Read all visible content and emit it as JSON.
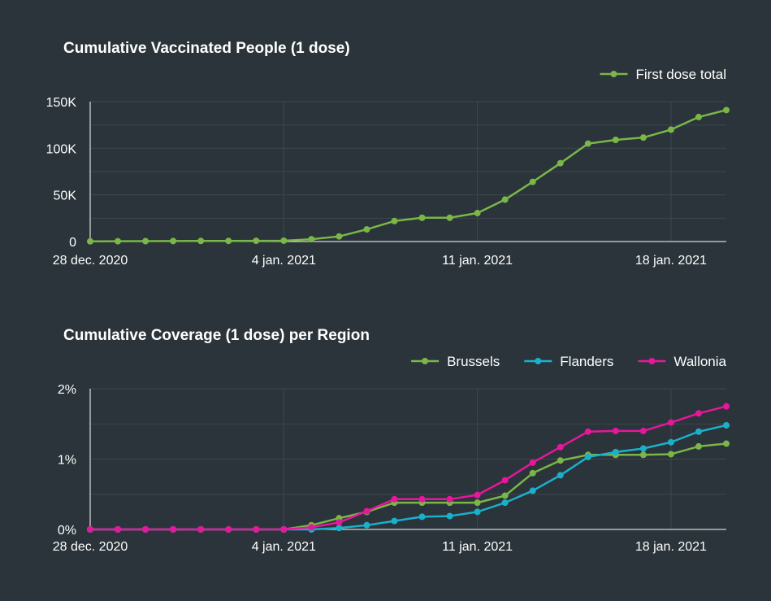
{
  "colors": {
    "background": "#2a343a",
    "first_dose": "#7ab648",
    "brussels": "#7ab648",
    "flanders": "#1ab0cc",
    "wallonia": "#e6179a",
    "grid": "#3d474d"
  },
  "chart_data": [
    {
      "type": "line",
      "title": "Cumulative Vaccinated People (1 dose)",
      "xlabel": "",
      "ylabel": "",
      "x": [
        "2020-12-28",
        "2020-12-29",
        "2020-12-30",
        "2020-12-31",
        "2021-01-01",
        "2021-01-02",
        "2021-01-03",
        "2021-01-04",
        "2021-01-05",
        "2021-01-06",
        "2021-01-07",
        "2021-01-08",
        "2021-01-09",
        "2021-01-10",
        "2021-01-11",
        "2021-01-12",
        "2021-01-13",
        "2021-01-14",
        "2021-01-15",
        "2021-01-16",
        "2021-01-17",
        "2021-01-18",
        "2021-01-19",
        "2021-01-20"
      ],
      "x_tick_labels": [
        "28 dec. 2020",
        "4 jan. 2021",
        "11 jan. 2021",
        "18 jan. 2021"
      ],
      "x_tick_index": [
        0,
        7,
        14,
        21
      ],
      "y_tick_labels": [
        "0",
        "50K",
        "100K",
        "150K"
      ],
      "y_tick_values": [
        0,
        50000,
        100000,
        150000
      ],
      "ylim": [
        0,
        150000
      ],
      "grid": true,
      "legend_position": "top-right",
      "series": [
        {
          "name": "First dose total",
          "color": "#7ab648",
          "values": [
            200,
            300,
            400,
            500,
            600,
            700,
            800,
            900,
            2500,
            5500,
            13000,
            22000,
            25500,
            25500,
            30500,
            45000,
            64000,
            84000,
            105000,
            109000,
            111500,
            120000,
            133500,
            141000
          ]
        }
      ]
    },
    {
      "type": "line",
      "title": "Cumulative Coverage (1 dose) per Region",
      "xlabel": "",
      "ylabel": "",
      "x": [
        "2020-12-28",
        "2020-12-29",
        "2020-12-30",
        "2020-12-31",
        "2021-01-01",
        "2021-01-02",
        "2021-01-03",
        "2021-01-04",
        "2021-01-05",
        "2021-01-06",
        "2021-01-07",
        "2021-01-08",
        "2021-01-09",
        "2021-01-10",
        "2021-01-11",
        "2021-01-12",
        "2021-01-13",
        "2021-01-14",
        "2021-01-15",
        "2021-01-16",
        "2021-01-17",
        "2021-01-18",
        "2021-01-19",
        "2021-01-20"
      ],
      "x_tick_labels": [
        "28 dec. 2020",
        "4 jan. 2021",
        "11 jan. 2021",
        "18 jan. 2021"
      ],
      "x_tick_index": [
        0,
        7,
        14,
        21
      ],
      "y_tick_labels": [
        "0%",
        "1%",
        "2%"
      ],
      "y_tick_values": [
        0,
        1,
        2
      ],
      "ylim": [
        0,
        2
      ],
      "grid": true,
      "legend_position": "top-right",
      "series": [
        {
          "name": "Brussels",
          "color": "#7ab648",
          "values": [
            0,
            0,
            0,
            0,
            0,
            0,
            0,
            0,
            0.06,
            0.16,
            0.25,
            0.38,
            0.38,
            0.38,
            0.38,
            0.48,
            0.8,
            0.98,
            1.06,
            1.06,
            1.06,
            1.07,
            1.18,
            1.22
          ]
        },
        {
          "name": "Flanders",
          "color": "#1ab0cc",
          "values": [
            0,
            0,
            0,
            0,
            0,
            0,
            0,
            0,
            0,
            0.02,
            0.06,
            0.12,
            0.18,
            0.19,
            0.25,
            0.38,
            0.55,
            0.77,
            1.03,
            1.1,
            1.15,
            1.24,
            1.39,
            1.48
          ]
        },
        {
          "name": "Wallonia",
          "color": "#e6179a",
          "values": [
            0,
            0,
            0,
            0,
            0,
            0,
            0,
            0,
            0.03,
            0.1,
            0.26,
            0.43,
            0.43,
            0.43,
            0.49,
            0.7,
            0.95,
            1.17,
            1.39,
            1.4,
            1.4,
            1.52,
            1.65,
            1.75
          ]
        }
      ]
    }
  ]
}
